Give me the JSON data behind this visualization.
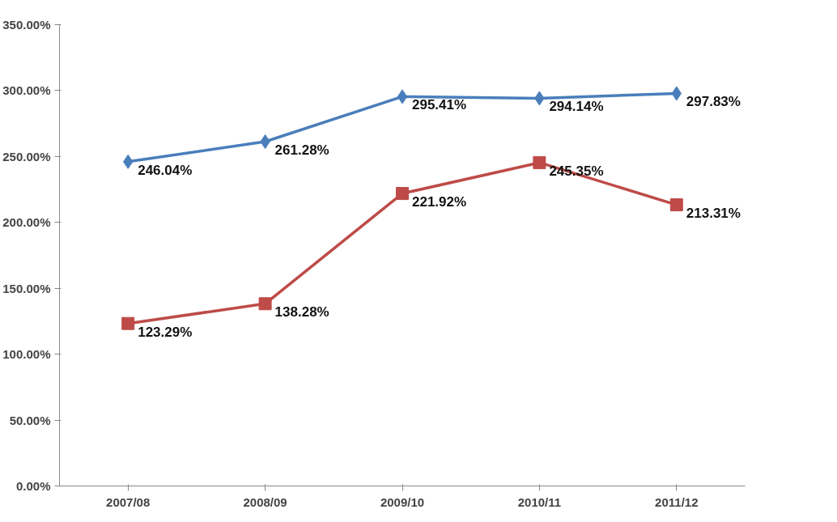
{
  "chart_data": {
    "type": "line",
    "categories": [
      "2007/08",
      "2008/09",
      "2009/10",
      "2010/11",
      "2011/12"
    ],
    "series": [
      {
        "color": "#4a7ebb",
        "marker": "diamond",
        "values": [
          246.04,
          261.28,
          295.41,
          294.14,
          297.83
        ],
        "value_labels": [
          "246.04%",
          "261.28%",
          "295.41%",
          "294.14%",
          "297.83%"
        ]
      },
      {
        "color": "#be4b48",
        "marker": "square",
        "values": [
          123.29,
          138.28,
          221.92,
          245.35,
          213.31
        ],
        "value_labels": [
          "123.29%",
          "138.28%",
          "221.92%",
          "245.35%",
          "213.31%"
        ]
      }
    ],
    "ylim": [
      0,
      350
    ],
    "yticks": [
      {
        "value": 0,
        "label": "0.00%"
      },
      {
        "value": 50,
        "label": "50.00%"
      },
      {
        "value": 100,
        "label": "100.00%"
      },
      {
        "value": 150,
        "label": "150.00%"
      },
      {
        "value": 200,
        "label": "200.00%"
      },
      {
        "value": 250,
        "label": "250.00%"
      },
      {
        "value": 300,
        "label": "300.00%"
      },
      {
        "value": 350,
        "label": "350.00%"
      }
    ],
    "grid": false
  }
}
